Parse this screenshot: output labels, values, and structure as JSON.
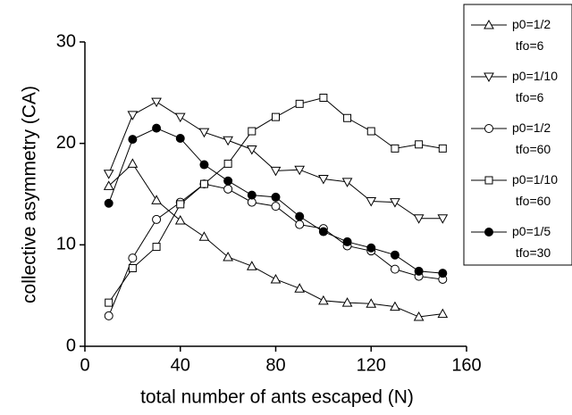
{
  "chart_data": {
    "type": "line",
    "xlabel": "total number of ants escaped (N)",
    "ylabel": "collective asymmetry (CA)",
    "x": [
      10,
      20,
      30,
      40,
      50,
      60,
      70,
      80,
      90,
      100,
      110,
      120,
      130,
      140,
      150
    ],
    "xlim": [
      0,
      160
    ],
    "xticks": [
      0,
      40,
      80,
      120,
      160
    ],
    "ylim": [
      0,
      30
    ],
    "yticks": [
      0,
      10,
      20,
      30
    ],
    "series": [
      {
        "name": "p0=1/2 tfo=6",
        "color": "#000000",
        "marker": "triangle-up",
        "values": [
          15.8,
          18,
          14.4,
          12.4,
          10.8,
          8.8,
          7.9,
          6.6,
          5.7,
          4.5,
          4.3,
          4.2,
          3.9,
          2.9,
          3.2
        ]
      },
      {
        "name": "p0=1/10 tfo=6",
        "color": "#000000",
        "marker": "triangle-down",
        "values": [
          17,
          22.8,
          24.1,
          22.6,
          21.1,
          20.3,
          19.4,
          17.3,
          17.4,
          16.5,
          16.2,
          14.3,
          14.2,
          12.6,
          12.6
        ]
      },
      {
        "name": "p0=1/2 tfo=60",
        "color": "#000000",
        "marker": "circle-open",
        "values": [
          3,
          8.7,
          12.5,
          14.2,
          16,
          15.5,
          14.2,
          13.8,
          12,
          11.6,
          9.9,
          9.4,
          7.6,
          6.9,
          6.6
        ]
      },
      {
        "name": "p0=1/10 tfo=60",
        "color": "#000000",
        "marker": "square-open",
        "values": [
          4.3,
          7.7,
          9.8,
          14,
          16,
          18,
          21.2,
          22.6,
          23.9,
          24.5,
          22.5,
          21.2,
          19.5,
          19.9,
          19.5
        ]
      },
      {
        "name": "p0=1/5 tfo=30",
        "color": "#000000",
        "marker": "circle-filled",
        "values": [
          14.1,
          20.4,
          21.5,
          20.5,
          17.9,
          16.3,
          14.9,
          14.7,
          12.8,
          11.3,
          10.3,
          9.7,
          9,
          7.4,
          7.2
        ]
      }
    ]
  }
}
